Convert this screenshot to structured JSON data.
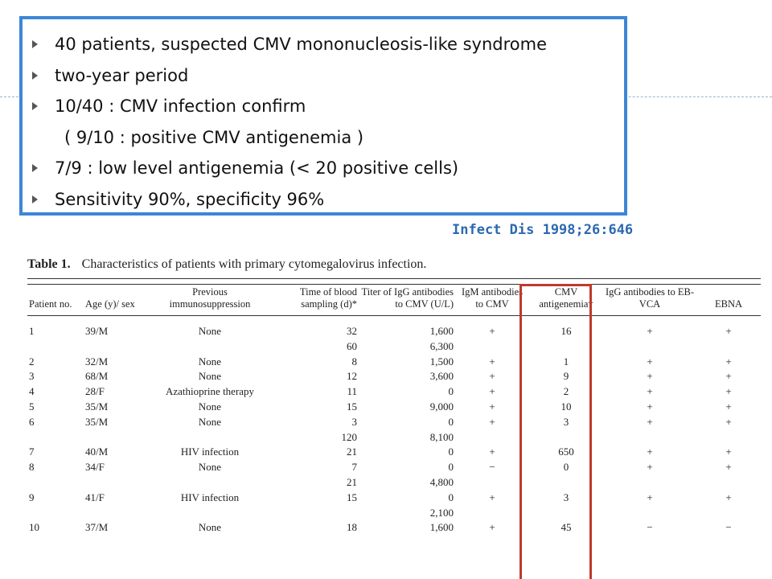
{
  "bullets": [
    {
      "text": "40 patients, suspected CMV mononucleosis-like syndrome",
      "bullet": true
    },
    {
      "text": "two-year period",
      "bullet": true
    },
    {
      "text": "10/40 : CMV infection confirm",
      "bullet": true
    },
    {
      "text": "( 9/10 : positive CMV antigenemia )",
      "bullet": false
    },
    {
      "text": "7/9 : low level antigenemia (< 20 positive cells)",
      "bullet": true
    },
    {
      "text": "Sensitivity 90%, specificity 96%",
      "bullet": true
    }
  ],
  "citation": "Infect Dis 1998;26:646",
  "table": {
    "label": "Table 1.",
    "title": "Characteristics of patients with primary cytomegalovirus infection.",
    "headers": [
      "Patient no.",
      "Age (y)/ sex",
      "Previous immunosuppression",
      "Time of blood sampling (d)*",
      "Titer of IgG antibodies to CMV (U/L)",
      "IgM antibodies to CMV",
      "CMV antigenemia†",
      "IgG antibodies to EB-VCA",
      "EBNA"
    ],
    "rows": [
      [
        "1",
        "39/M",
        "None",
        "32",
        "1,600",
        "+",
        "16",
        "+",
        "+"
      ],
      [
        "",
        "",
        "",
        "60",
        "6,300",
        "",
        "",
        "",
        ""
      ],
      [
        "2",
        "32/M",
        "None",
        "8",
        "1,500",
        "+",
        "1",
        "+",
        "+"
      ],
      [
        "3",
        "68/M",
        "None",
        "12",
        "3,600",
        "+",
        "9",
        "+",
        "+"
      ],
      [
        "4",
        "28/F",
        "Azathioprine therapy",
        "11",
        "0",
        "+",
        "2",
        "+",
        "+"
      ],
      [
        "5",
        "35/M",
        "None",
        "15",
        "9,000",
        "+",
        "10",
        "+",
        "+"
      ],
      [
        "6",
        "35/M",
        "None",
        "3",
        "0",
        "+",
        "3",
        "+",
        "+"
      ],
      [
        "",
        "",
        "",
        "120",
        "8,100",
        "",
        "",
        "",
        ""
      ],
      [
        "7",
        "40/M",
        "HIV infection",
        "21",
        "0",
        "+",
        "650",
        "+",
        "+"
      ],
      [
        "8",
        "34/F",
        "None",
        "7",
        "0",
        "−",
        "0",
        "+",
        "+"
      ],
      [
        "",
        "",
        "",
        "21",
        "4,800",
        "",
        "",
        "",
        ""
      ],
      [
        "9",
        "41/F",
        "HIV infection",
        "15",
        "0",
        "+",
        "3",
        "+",
        "+"
      ],
      [
        "",
        "",
        "",
        "",
        "2,100",
        "",
        "",
        "",
        ""
      ],
      [
        "10",
        "37/M",
        "None",
        "18",
        "1,600",
        "+",
        "45",
        "−",
        "−"
      ]
    ]
  },
  "colors": {
    "box_border": "#3d86d6",
    "citation": "#2c69b0",
    "highlight": "#c0392b"
  }
}
